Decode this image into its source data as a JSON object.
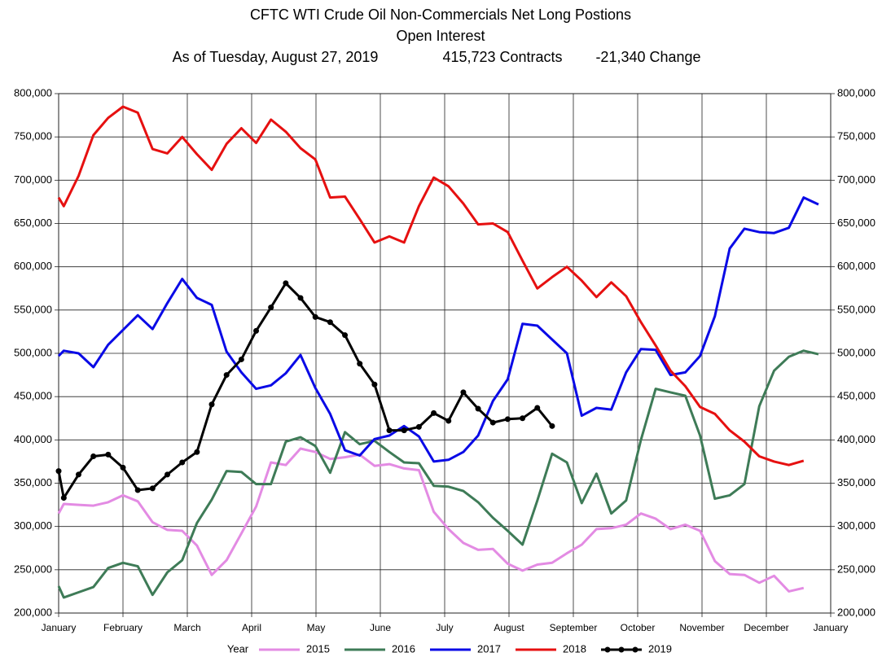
{
  "chart_data": {
    "type": "line",
    "title": "CFTC WTI Crude Oil Non-Commercials Net Long Postions",
    "subtitle": "Open Interest",
    "caption": [
      "As of Tuesday, August 27, 2019",
      "415,723 Contracts",
      "-21,340 Change"
    ],
    "legend_title": "Year",
    "legend": "bottom",
    "grid": true,
    "xlim": [
      0,
      12
    ],
    "xticks": [
      {
        "value": 0,
        "label": "January"
      },
      {
        "value": 1,
        "label": "February"
      },
      {
        "value": 2,
        "label": "March"
      },
      {
        "value": 3,
        "label": "April"
      },
      {
        "value": 4,
        "label": "May"
      },
      {
        "value": 5,
        "label": "June"
      },
      {
        "value": 6,
        "label": "July"
      },
      {
        "value": 7,
        "label": "August"
      },
      {
        "value": 8,
        "label": "September"
      },
      {
        "value": 9,
        "label": "October"
      },
      {
        "value": 10,
        "label": "November"
      },
      {
        "value": 11,
        "label": "December"
      },
      {
        "value": 12,
        "label": "January"
      }
    ],
    "ylim": [
      200000,
      800000
    ],
    "yticks": [
      {
        "value": 200000,
        "label": "200,000"
      },
      {
        "value": 250000,
        "label": "250,000"
      },
      {
        "value": 300000,
        "label": "300,000"
      },
      {
        "value": 350000,
        "label": "350,000"
      },
      {
        "value": 400000,
        "label": "400,000"
      },
      {
        "value": 450000,
        "label": "450,000"
      },
      {
        "value": 500000,
        "label": "500,000"
      },
      {
        "value": 550000,
        "label": "550,000"
      },
      {
        "value": 600000,
        "label": "600,000"
      },
      {
        "value": 650000,
        "label": "650,000"
      },
      {
        "value": 700000,
        "label": "700,000"
      },
      {
        "value": 750000,
        "label": "750,000"
      },
      {
        "value": 800000,
        "label": "800,000"
      }
    ],
    "x": [
      0,
      0.08,
      0.31,
      0.54,
      0.77,
      1.0,
      1.23,
      1.46,
      1.69,
      1.92,
      2.15,
      2.38,
      2.61,
      2.84,
      3.07,
      3.3,
      3.53,
      3.76,
      3.99,
      4.22,
      4.45,
      4.68,
      4.91,
      5.14,
      5.37,
      5.6,
      5.83,
      6.06,
      6.29,
      6.52,
      6.75,
      6.98,
      7.21,
      7.44,
      7.67,
      7.9,
      8.13,
      8.36,
      8.59,
      8.82,
      9.05,
      9.28,
      9.51,
      9.74,
      9.97,
      10.2,
      10.43,
      10.66,
      10.89,
      11.12,
      11.35,
      11.58,
      11.81
    ],
    "series": [
      {
        "name": "2015",
        "color": "#e38be3",
        "values": [
          315000,
          326000,
          325000,
          324000,
          328000,
          336000,
          329000,
          305000,
          296000,
          295000,
          278000,
          244000,
          261000,
          292000,
          323000,
          374000,
          371000,
          390000,
          386000,
          378000,
          380000,
          383000,
          370000,
          372000,
          367000,
          365000,
          317000,
          297000,
          281000,
          273000,
          274000,
          257000,
          249000,
          256000,
          258000,
          269000,
          279000,
          297000,
          298000,
          302000,
          315000,
          309000,
          297000,
          302000,
          295000,
          260000,
          245000,
          244000,
          235000,
          243000,
          225000,
          229000,
          null
        ]
      },
      {
        "name": "2016",
        "color": "#3e7b57",
        "values": [
          231000,
          218000,
          224000,
          230000,
          252000,
          258000,
          254000,
          221000,
          247000,
          261000,
          304000,
          331000,
          364000,
          363000,
          349000,
          349000,
          398000,
          403000,
          393000,
          362000,
          409000,
          395000,
          399000,
          386000,
          374000,
          373000,
          347000,
          346000,
          341000,
          328000,
          310000,
          295000,
          279000,
          330000,
          384000,
          374000,
          327000,
          361000,
          315000,
          330000,
          400000,
          459000,
          455000,
          451000,
          405000,
          332000,
          336000,
          349000,
          439000,
          480000,
          496000,
          503000,
          499000
        ]
      },
      {
        "name": "2017",
        "color": "#0a0ae6",
        "values": [
          497000,
          503000,
          500000,
          484000,
          510000,
          527000,
          544000,
          528000,
          558000,
          586000,
          564000,
          556000,
          502000,
          478000,
          459000,
          463000,
          477000,
          498000,
          460000,
          430000,
          388000,
          382000,
          401000,
          405000,
          416000,
          404000,
          375000,
          377000,
          386000,
          405000,
          445000,
          470000,
          534000,
          532000,
          516000,
          500000,
          428000,
          437000,
          435000,
          478000,
          505000,
          504000,
          475000,
          478000,
          497000,
          543000,
          621000,
          644000,
          640000,
          639000,
          645000,
          680000,
          672000
        ]
      },
      {
        "name": "2018",
        "color": "#e61010",
        "values": [
          680000,
          670000,
          705000,
          752000,
          772000,
          785000,
          778000,
          736000,
          731000,
          750000,
          730000,
          712000,
          742000,
          760000,
          743000,
          770000,
          756000,
          737000,
          724000,
          680000,
          681000,
          655000,
          628000,
          635000,
          628000,
          670000,
          703000,
          693000,
          673000,
          649000,
          650000,
          640000,
          607000,
          575000,
          588000,
          600000,
          584000,
          565000,
          582000,
          566000,
          536000,
          509000,
          480000,
          462000,
          438000,
          430000,
          411000,
          398000,
          381000,
          375000,
          371000,
          376000,
          null
        ]
      },
      {
        "name": "2019",
        "color": "#000000",
        "markers": true,
        "values": [
          364000,
          333000,
          360000,
          381000,
          383000,
          368000,
          342000,
          344000,
          360000,
          374000,
          386000,
          441000,
          475000,
          493000,
          526000,
          553000,
          581000,
          564000,
          542000,
          536000,
          521000,
          488000,
          464000,
          411000,
          411000,
          415000,
          431000,
          422000,
          455000,
          436000,
          420000,
          424000,
          425000,
          437000,
          416000,
          null,
          null,
          null,
          null,
          null,
          null,
          null,
          null,
          null,
          null,
          null,
          null,
          null,
          null,
          null,
          null,
          null,
          null
        ]
      }
    ]
  }
}
